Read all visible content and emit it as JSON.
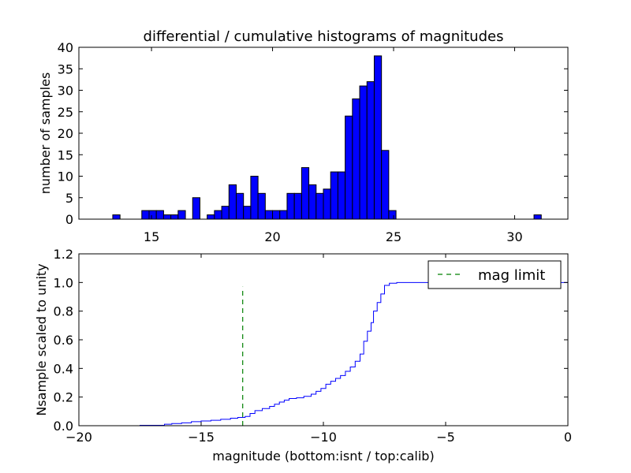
{
  "chart_data": [
    {
      "type": "bar",
      "title": "differential / cumulative histograms of magnitudes",
      "xlabel": "",
      "ylabel": "number of samples",
      "xlim": [
        12.0,
        32.2
      ],
      "ylim": [
        0,
        40
      ],
      "xticks": [
        15,
        20,
        25,
        30
      ],
      "xtick_labels": [
        "15",
        "20",
        "25",
        "30"
      ],
      "yticks": [
        0,
        5,
        10,
        15,
        20,
        25,
        30,
        35,
        40
      ],
      "ytick_labels": [
        "0",
        "5",
        "10",
        "15",
        "20",
        "25",
        "30",
        "35",
        "40"
      ],
      "bar_color": "#0000ff",
      "bin_width": 0.3,
      "bin_start": 13.4,
      "counts": [
        1,
        0,
        0,
        0,
        2,
        2,
        2,
        1,
        1,
        2,
        0,
        5,
        0,
        1,
        2,
        3,
        8,
        6,
        3,
        10,
        6,
        2,
        2,
        2,
        6,
        6,
        12,
        8,
        6,
        7,
        11,
        11,
        24,
        28,
        31,
        32,
        38,
        16,
        2,
        0,
        0,
        0,
        0,
        0,
        0,
        0,
        0,
        0,
        0,
        0,
        0,
        0,
        0,
        0,
        0,
        0,
        0,
        0,
        1
      ]
    },
    {
      "type": "line",
      "xlabel": "magnitude (bottom:isnt / top:calib)",
      "ylabel": "Nsample scaled to unity",
      "xlim": [
        -20,
        0
      ],
      "ylim": [
        0.0,
        1.2
      ],
      "xticks": [
        -20,
        -15,
        -10,
        -5,
        0
      ],
      "xtick_labels": [
        "−20",
        "−15",
        "−10",
        "−5",
        "0"
      ],
      "yticks": [
        0.0,
        0.2,
        0.4,
        0.6,
        0.8,
        1.0,
        1.2
      ],
      "ytick_labels": [
        "0.0",
        "0.2",
        "0.4",
        "0.6",
        "0.8",
        "1.0",
        "1.2"
      ],
      "legend_position": "top-right",
      "series": [
        {
          "style": "step",
          "color": "#0000ff",
          "points": [
            [
              -20,
              0
            ],
            [
              -17.5,
              0.003
            ],
            [
              -17.0,
              0.003
            ],
            [
              -16.5,
              0.01
            ],
            [
              -16.2,
              0.015
            ],
            [
              -15.8,
              0.02
            ],
            [
              -15.4,
              0.028
            ],
            [
              -15.0,
              0.033
            ],
            [
              -14.6,
              0.038
            ],
            [
              -14.2,
              0.045
            ],
            [
              -13.8,
              0.052
            ],
            [
              -13.5,
              0.058
            ],
            [
              -13.2,
              0.065
            ],
            [
              -13.0,
              0.085
            ],
            [
              -12.8,
              0.105
            ],
            [
              -12.5,
              0.12
            ],
            [
              -12.2,
              0.135
            ],
            [
              -12.0,
              0.15
            ],
            [
              -11.8,
              0.165
            ],
            [
              -11.6,
              0.178
            ],
            [
              -11.4,
              0.19
            ],
            [
              -11.1,
              0.195
            ],
            [
              -10.8,
              0.205
            ],
            [
              -10.5,
              0.22
            ],
            [
              -10.3,
              0.24
            ],
            [
              -10.1,
              0.26
            ],
            [
              -9.9,
              0.29
            ],
            [
              -9.7,
              0.31
            ],
            [
              -9.5,
              0.33
            ],
            [
              -9.3,
              0.35
            ],
            [
              -9.1,
              0.38
            ],
            [
              -8.9,
              0.41
            ],
            [
              -8.7,
              0.45
            ],
            [
              -8.5,
              0.5
            ],
            [
              -8.35,
              0.59
            ],
            [
              -8.2,
              0.66
            ],
            [
              -8.05,
              0.72
            ],
            [
              -7.95,
              0.8
            ],
            [
              -7.8,
              0.86
            ],
            [
              -7.65,
              0.92
            ],
            [
              -7.5,
              0.98
            ],
            [
              -7.3,
              0.995
            ],
            [
              -7.0,
              1.0
            ],
            [
              0,
              1.0
            ],
            [
              0,
              0
            ]
          ]
        },
        {
          "name": "mag limit",
          "style": "dashed",
          "color": "#008000",
          "x": -13.3,
          "y_range": [
            0.0,
            0.97
          ]
        }
      ]
    }
  ]
}
